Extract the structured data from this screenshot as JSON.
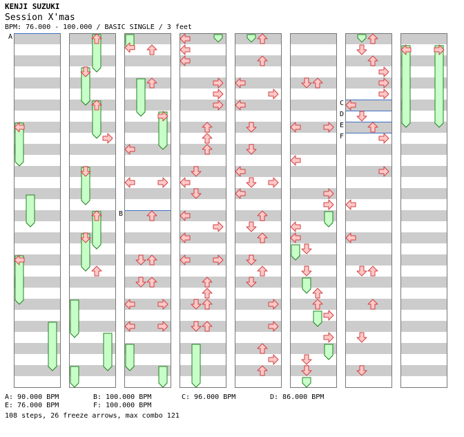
{
  "song": {
    "artist": "KENJI SUZUKI",
    "title": "Session X'mas",
    "bpm_line": "BPM: 76.000 - 100.000 / BASIC SINGLE / 3 feet"
  },
  "bpm_changes": [
    {
      "label": "A",
      "bpm": 90,
      "text": "A: 90.000 BPM"
    },
    {
      "label": "B",
      "bpm": 100,
      "text": "B: 100.000 BPM"
    },
    {
      "label": "C",
      "bpm": 96,
      "text": "C: 96.000 BPM"
    },
    {
      "label": "D",
      "bpm": 86,
      "text": "D: 86.000 BPM"
    },
    {
      "label": "E",
      "bpm": 76,
      "text": "E: 76.000 BPM"
    },
    {
      "label": "F",
      "bpm": 100,
      "text": "F: 100.000 BPM"
    }
  ],
  "summary": "108 steps, 26 freeze arrows, max combo 121",
  "chart_meta": {
    "columns": 8,
    "measures_per_column": 8,
    "lanes": [
      "left",
      "down",
      "up",
      "right"
    ],
    "colors": {
      "arrow_fill": "#ffc8c8",
      "arrow_stroke": "#d04040",
      "freeze_fill": "#c8ffc8",
      "freeze_stroke": "#208020",
      "stripe": "#cccccc",
      "bpm_line": "#4070c0"
    }
  },
  "bpm_markers": [
    {
      "label": "A",
      "col": 0,
      "pos": 0
    },
    {
      "label": "B",
      "col": 2,
      "pos": 16
    },
    {
      "label": "C",
      "col": 6,
      "pos": 6
    },
    {
      "label": "D",
      "col": 6,
      "pos": 7
    },
    {
      "label": "E",
      "col": 6,
      "pos": 8
    },
    {
      "label": "F",
      "col": 6,
      "pos": 9
    }
  ],
  "arrows": [
    {
      "col": 0,
      "lane": 0,
      "pos": 8
    },
    {
      "col": 0,
      "lane": 0,
      "pos": 20
    },
    {
      "col": 1,
      "lane": 2,
      "pos": 0
    },
    {
      "col": 1,
      "lane": 1,
      "pos": 3
    },
    {
      "col": 1,
      "lane": 2,
      "pos": 6
    },
    {
      "col": 1,
      "lane": 3,
      "pos": 9
    },
    {
      "col": 1,
      "lane": 1,
      "pos": 12
    },
    {
      "col": 1,
      "lane": 2,
      "pos": 16
    },
    {
      "col": 1,
      "lane": 1,
      "pos": 18
    },
    {
      "col": 1,
      "lane": 2,
      "pos": 21
    },
    {
      "col": 2,
      "lane": 0,
      "pos": 0.8
    },
    {
      "col": 2,
      "lane": 2,
      "pos": 1
    },
    {
      "col": 2,
      "lane": 2,
      "pos": 4
    },
    {
      "col": 2,
      "lane": 3,
      "pos": 7
    },
    {
      "col": 2,
      "lane": 0,
      "pos": 10
    },
    {
      "col": 2,
      "lane": 0,
      "pos": 13
    },
    {
      "col": 2,
      "lane": 3,
      "pos": 13
    },
    {
      "col": 2,
      "lane": 2,
      "pos": 16
    },
    {
      "col": 2,
      "lane": 1,
      "pos": 20
    },
    {
      "col": 2,
      "lane": 2,
      "pos": 20
    },
    {
      "col": 2,
      "lane": 1,
      "pos": 22
    },
    {
      "col": 2,
      "lane": 2,
      "pos": 22
    },
    {
      "col": 2,
      "lane": 0,
      "pos": 24
    },
    {
      "col": 2,
      "lane": 3,
      "pos": 24
    },
    {
      "col": 2,
      "lane": 0,
      "pos": 26
    },
    {
      "col": 2,
      "lane": 3,
      "pos": 26
    },
    {
      "col": 3,
      "lane": 0,
      "pos": 0
    },
    {
      "col": 3,
      "lane": 0,
      "pos": 1
    },
    {
      "col": 3,
      "lane": 0,
      "pos": 2
    },
    {
      "col": 3,
      "lane": 3,
      "pos": 4
    },
    {
      "col": 3,
      "lane": 3,
      "pos": 5
    },
    {
      "col": 3,
      "lane": 3,
      "pos": 6
    },
    {
      "col": 3,
      "lane": 2,
      "pos": 8
    },
    {
      "col": 3,
      "lane": 2,
      "pos": 9
    },
    {
      "col": 3,
      "lane": 2,
      "pos": 10
    },
    {
      "col": 3,
      "lane": 1,
      "pos": 12
    },
    {
      "col": 3,
      "lane": 0,
      "pos": 13
    },
    {
      "col": 3,
      "lane": 1,
      "pos": 14
    },
    {
      "col": 3,
      "lane": 0,
      "pos": 16
    },
    {
      "col": 3,
      "lane": 3,
      "pos": 17
    },
    {
      "col": 3,
      "lane": 0,
      "pos": 18
    },
    {
      "col": 3,
      "lane": 0,
      "pos": 20
    },
    {
      "col": 3,
      "lane": 3,
      "pos": 20
    },
    {
      "col": 3,
      "lane": 2,
      "pos": 22
    },
    {
      "col": 3,
      "lane": 2,
      "pos": 23
    },
    {
      "col": 3,
      "lane": 1,
      "pos": 24
    },
    {
      "col": 3,
      "lane": 2,
      "pos": 24
    },
    {
      "col": 3,
      "lane": 1,
      "pos": 26
    },
    {
      "col": 3,
      "lane": 2,
      "pos": 26
    },
    {
      "col": 4,
      "lane": 2,
      "pos": 0
    },
    {
      "col": 4,
      "lane": 2,
      "pos": 2
    },
    {
      "col": 4,
      "lane": 0,
      "pos": 4
    },
    {
      "col": 4,
      "lane": 3,
      "pos": 5
    },
    {
      "col": 4,
      "lane": 0,
      "pos": 6
    },
    {
      "col": 4,
      "lane": 1,
      "pos": 8
    },
    {
      "col": 4,
      "lane": 1,
      "pos": 10
    },
    {
      "col": 4,
      "lane": 0,
      "pos": 12
    },
    {
      "col": 4,
      "lane": 0,
      "pos": 14
    },
    {
      "col": 4,
      "lane": 1,
      "pos": 13
    },
    {
      "col": 4,
      "lane": 3,
      "pos": 13
    },
    {
      "col": 4,
      "lane": 2,
      "pos": 16
    },
    {
      "col": 4,
      "lane": 1,
      "pos": 17
    },
    {
      "col": 4,
      "lane": 2,
      "pos": 18
    },
    {
      "col": 4,
      "lane": 1,
      "pos": 20
    },
    {
      "col": 4,
      "lane": 2,
      "pos": 21
    },
    {
      "col": 4,
      "lane": 1,
      "pos": 22
    },
    {
      "col": 4,
      "lane": 3,
      "pos": 24
    },
    {
      "col": 4,
      "lane": 3,
      "pos": 26
    },
    {
      "col": 4,
      "lane": 2,
      "pos": 28
    },
    {
      "col": 4,
      "lane": 3,
      "pos": 29
    },
    {
      "col": 4,
      "lane": 2,
      "pos": 30
    },
    {
      "col": 5,
      "lane": 1,
      "pos": 4
    },
    {
      "col": 5,
      "lane": 2,
      "pos": 4
    },
    {
      "col": 5,
      "lane": 0,
      "pos": 8
    },
    {
      "col": 5,
      "lane": 3,
      "pos": 8
    },
    {
      "col": 5,
      "lane": 0,
      "pos": 11
    },
    {
      "col": 5,
      "lane": 3,
      "pos": 14
    },
    {
      "col": 5,
      "lane": 3,
      "pos": 15
    },
    {
      "col": 5,
      "lane": 0,
      "pos": 17
    },
    {
      "col": 5,
      "lane": 0,
      "pos": 18
    },
    {
      "col": 5,
      "lane": 1,
      "pos": 19
    },
    {
      "col": 5,
      "lane": 1,
      "pos": 21
    },
    {
      "col": 5,
      "lane": 2,
      "pos": 23
    },
    {
      "col": 5,
      "lane": 2,
      "pos": 24
    },
    {
      "col": 5,
      "lane": 3,
      "pos": 25
    },
    {
      "col": 5,
      "lane": 3,
      "pos": 27
    },
    {
      "col": 5,
      "lane": 1,
      "pos": 29
    },
    {
      "col": 5,
      "lane": 1,
      "pos": 30
    },
    {
      "col": 6,
      "lane": 2,
      "pos": 0
    },
    {
      "col": 6,
      "lane": 1,
      "pos": 1
    },
    {
      "col": 6,
      "lane": 2,
      "pos": 2
    },
    {
      "col": 6,
      "lane": 3,
      "pos": 3
    },
    {
      "col": 6,
      "lane": 3,
      "pos": 4
    },
    {
      "col": 6,
      "lane": 3,
      "pos": 5
    },
    {
      "col": 6,
      "lane": 0,
      "pos": 6
    },
    {
      "col": 6,
      "lane": 1,
      "pos": 7
    },
    {
      "col": 6,
      "lane": 2,
      "pos": 8
    },
    {
      "col": 6,
      "lane": 3,
      "pos": 9
    },
    {
      "col": 6,
      "lane": 3,
      "pos": 12
    },
    {
      "col": 6,
      "lane": 0,
      "pos": 15
    },
    {
      "col": 6,
      "lane": 0,
      "pos": 18
    },
    {
      "col": 6,
      "lane": 1,
      "pos": 21
    },
    {
      "col": 6,
      "lane": 2,
      "pos": 21
    },
    {
      "col": 6,
      "lane": 2,
      "pos": 24
    },
    {
      "col": 6,
      "lane": 1,
      "pos": 27
    },
    {
      "col": 6,
      "lane": 1,
      "pos": 30
    },
    {
      "col": 7,
      "lane": 0,
      "pos": 1
    },
    {
      "col": 7,
      "lane": 3,
      "pos": 1
    }
  ],
  "freezes": [
    {
      "col": 0,
      "lane": 0,
      "start": 8,
      "end": 12
    },
    {
      "col": 0,
      "lane": 1,
      "start": 14.5,
      "end": 17.5
    },
    {
      "col": 0,
      "lane": 0,
      "start": 20,
      "end": 24.5
    },
    {
      "col": 0,
      "lane": 3,
      "start": 26,
      "end": 30.5
    },
    {
      "col": 1,
      "lane": 2,
      "start": 0,
      "end": 3.5
    },
    {
      "col": 1,
      "lane": 1,
      "start": 3,
      "end": 6.5
    },
    {
      "col": 1,
      "lane": 2,
      "start": 6,
      "end": 9.5
    },
    {
      "col": 1,
      "lane": 1,
      "start": 12,
      "end": 15.5
    },
    {
      "col": 1,
      "lane": 2,
      "start": 16,
      "end": 19.5
    },
    {
      "col": 1,
      "lane": 1,
      "start": 18,
      "end": 21.5
    },
    {
      "col": 1,
      "lane": 0,
      "start": 24,
      "end": 27.5
    },
    {
      "col": 1,
      "lane": 3,
      "start": 27,
      "end": 30.5
    },
    {
      "col": 1,
      "lane": 0,
      "start": 30,
      "end": 32
    },
    {
      "col": 2,
      "lane": 0,
      "start": 0,
      "end": 1.5
    },
    {
      "col": 2,
      "lane": 1,
      "start": 4,
      "end": 7.5
    },
    {
      "col": 2,
      "lane": 3,
      "start": 7,
      "end": 10.5
    },
    {
      "col": 2,
      "lane": 0,
      "start": 28,
      "end": 30.5
    },
    {
      "col": 2,
      "lane": 3,
      "start": 30,
      "end": 32
    },
    {
      "col": 3,
      "lane": 3,
      "start": 0,
      "end": 0.8
    },
    {
      "col": 3,
      "lane": 1,
      "start": 28,
      "end": 32
    },
    {
      "col": 4,
      "lane": 1,
      "start": 0,
      "end": 0.8
    },
    {
      "col": 5,
      "lane": 3,
      "start": 16,
      "end": 17.5
    },
    {
      "col": 5,
      "lane": 0,
      "start": 19,
      "end": 20.5
    },
    {
      "col": 5,
      "lane": 1,
      "start": 22,
      "end": 23.5
    },
    {
      "col": 5,
      "lane": 2,
      "start": 25,
      "end": 26.5
    },
    {
      "col": 5,
      "lane": 3,
      "start": 28,
      "end": 29.5
    },
    {
      "col": 5,
      "lane": 1,
      "start": 31,
      "end": 32
    },
    {
      "col": 6,
      "lane": 1,
      "start": 0,
      "end": 0.8
    },
    {
      "col": 7,
      "lane": 0,
      "start": 1,
      "end": 8.5
    },
    {
      "col": 7,
      "lane": 3,
      "start": 1,
      "end": 8.5
    }
  ]
}
